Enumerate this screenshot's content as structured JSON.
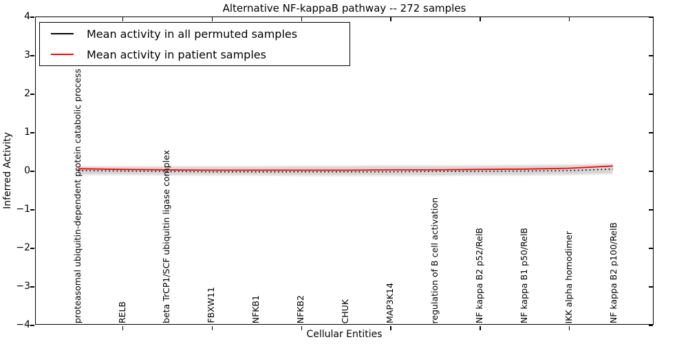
{
  "chart_data": {
    "type": "line",
    "title": "Alternative NF-kappaB pathway -- 272 samples",
    "xlabel": "Cellular Entities",
    "ylabel": "Inferred Activity",
    "ylim": [
      -4,
      4
    ],
    "xlim": [
      -0.95,
      12.9
    ],
    "ytick_labels": [
      "4",
      "3",
      "2",
      "1",
      "0",
      "−1",
      "−2",
      "−3",
      "−4"
    ],
    "ytick_values": [
      4,
      3,
      2,
      1,
      0,
      -1,
      -2,
      -3,
      -4
    ],
    "xtick_values": [
      1,
      3,
      5,
      7,
      9,
      11
    ],
    "grid": false,
    "legend_position": "upper left",
    "categories": [
      "proteasomal ubiquitin-dependent protein catabolic process",
      "RELB",
      "beta TrCP1/SCF ubiquitin ligase complex",
      "FBXW11",
      "NFKB1",
      "NFKB2",
      "CHUK",
      "MAP3K14",
      "regulation of B cell activation",
      "NF kappa B2 p52/RelB",
      "NF kappa B1 p50/RelB",
      "IKK alpha homodimer",
      "NF kappa B2 p100/RelB"
    ],
    "x": [
      0,
      1,
      2,
      3,
      4,
      5,
      6,
      7,
      8,
      9,
      10,
      11,
      12
    ],
    "series": [
      {
        "name": "Mean activity in all permuted samples",
        "color": "#000000",
        "style": "dotted",
        "values": [
          0.0,
          -0.01,
          -0.02,
          -0.03,
          -0.03,
          -0.03,
          -0.03,
          -0.03,
          -0.02,
          -0.02,
          -0.01,
          0.0,
          0.04
        ]
      },
      {
        "name": "Mean activity in patient samples",
        "color": "#ff0000",
        "style": "solid",
        "values": [
          0.05,
          0.03,
          0.02,
          0.01,
          0.01,
          0.01,
          0.01,
          0.02,
          0.02,
          0.03,
          0.04,
          0.06,
          0.12
        ]
      }
    ],
    "band": {
      "color": "#d6d6d6",
      "outer_color": "#ebebeb",
      "outer_pad": 0.04,
      "upper": [
        0.09,
        0.09,
        0.09,
        0.09,
        0.09,
        0.1,
        0.1,
        0.11,
        0.11,
        0.11,
        0.12,
        0.13,
        0.16
      ],
      "lower": [
        -0.09,
        -0.09,
        -0.1,
        -0.1,
        -0.1,
        -0.11,
        -0.11,
        -0.11,
        -0.11,
        -0.1,
        -0.1,
        -0.09,
        -0.06
      ]
    }
  }
}
